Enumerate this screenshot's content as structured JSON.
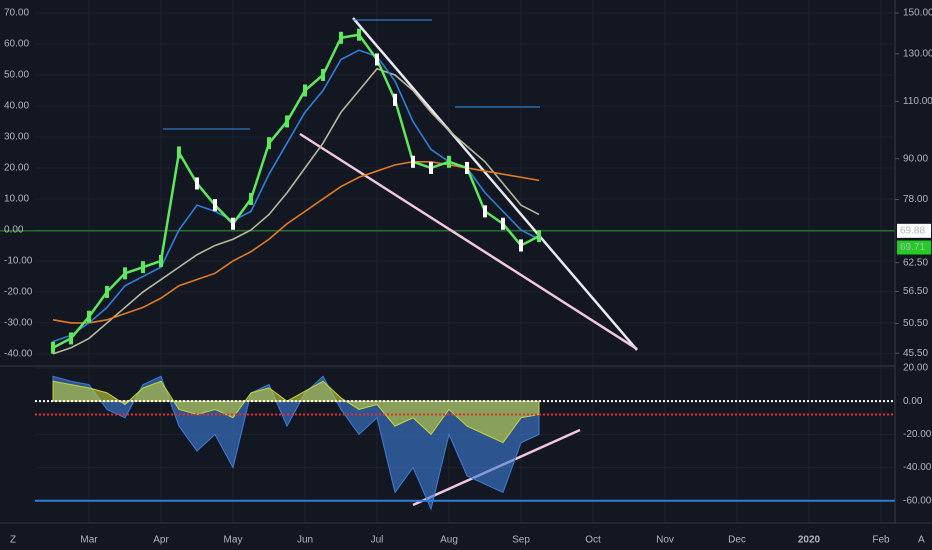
{
  "chart_data": [
    {
      "type": "line",
      "categories": [
        null,
        null,
        "Mar",
        null,
        null,
        null,
        "Apr",
        null,
        null,
        null,
        "May",
        null,
        null,
        null,
        "Jun",
        null,
        null,
        null,
        "Jul",
        null,
        null,
        null,
        "Aug",
        null,
        null,
        null,
        "Sep",
        null,
        null,
        null,
        "Oct",
        null,
        null,
        null,
        "Nov",
        null,
        null,
        null,
        "Dec",
        null,
        null,
        null,
        "2020",
        null,
        null,
        null,
        "Feb"
      ],
      "series": [
        {
          "color": "#b8b89a",
          "values": [
            -40,
            -38,
            -35,
            -30,
            -25,
            -20,
            -16,
            -12,
            -8,
            -5,
            -3,
            0,
            5,
            12,
            20,
            28,
            38,
            45,
            52,
            50,
            45,
            38,
            32,
            27,
            22,
            15,
            8,
            5,
            null,
            null,
            null,
            null,
            null,
            null,
            null,
            null,
            null,
            null,
            null,
            null,
            null,
            null,
            null,
            null,
            null,
            null,
            null
          ]
        },
        {
          "color": "#e07b22",
          "values": [
            -29,
            -30,
            -30,
            -29,
            -27,
            -25,
            -22,
            -18,
            -16,
            -14,
            -10,
            -7,
            -3,
            2,
            6,
            10,
            14,
            17,
            19,
            21,
            22,
            22,
            21,
            20,
            19,
            18,
            17,
            16,
            null,
            null,
            null,
            null,
            null,
            null,
            null,
            null,
            null,
            null,
            null,
            null,
            null,
            null,
            null,
            null,
            null,
            null,
            null
          ]
        },
        {
          "color": "#2f7fd8",
          "values": [
            -36,
            -34,
            -30,
            -25,
            -18,
            -15,
            -12,
            0,
            8,
            6,
            3,
            6,
            18,
            28,
            38,
            45,
            55,
            58,
            56,
            48,
            35,
            26,
            22,
            20,
            12,
            6,
            0,
            -3,
            null,
            null,
            null,
            null,
            null,
            null,
            null,
            null,
            null,
            null,
            null,
            null,
            null,
            null,
            null,
            null,
            null,
            null,
            null
          ]
        },
        {
          "color": "#5de85d",
          "values": [
            -38,
            -35,
            -28,
            -20,
            -14,
            -12,
            -10,
            25,
            15,
            8,
            2,
            10,
            28,
            35,
            45,
            50,
            62,
            63,
            55,
            42,
            22,
            20,
            22,
            20,
            6,
            2,
            -5,
            -2,
            null,
            null,
            null,
            null,
            null,
            null,
            null,
            null,
            null,
            null,
            null,
            null,
            null,
            null,
            null,
            null,
            null,
            null,
            null
          ]
        }
      ],
      "ylim": [
        -43.9,
        74.2
      ],
      "yticks": [
        {
          "value": 70,
          "label": "70.00"
        },
        {
          "value": 60,
          "label": "60.00"
        },
        {
          "value": 50,
          "label": "50.00"
        },
        {
          "value": 40,
          "label": "40.00"
        },
        {
          "value": 30,
          "label": "30.00"
        },
        {
          "value": 20,
          "label": "20.00"
        },
        {
          "value": 10,
          "label": "10.00"
        },
        {
          "value": 0,
          "label": "0.00"
        },
        {
          "value": -10,
          "label": "-10.00"
        },
        {
          "value": -20,
          "label": "-20.00"
        },
        {
          "value": -30,
          "label": "-30.00"
        },
        {
          "value": -40,
          "label": "-40.00"
        }
      ],
      "y2lim": [
        43.5,
        157
      ],
      "y2_log": true,
      "y2ticks": [
        {
          "value": 150,
          "label": "150.00"
        },
        {
          "value": 130,
          "label": "130.00"
        },
        {
          "value": 110,
          "label": "110.00"
        },
        {
          "value": 90,
          "label": "90.00"
        },
        {
          "value": 78,
          "label": "78.00"
        },
        {
          "value": 62.5,
          "label": "62.50"
        },
        {
          "value": 56.5,
          "label": "56.50"
        },
        {
          "value": 50.5,
          "label": "50.50"
        },
        {
          "value": 45.5,
          "label": "45.50"
        }
      ],
      "price_labels": [
        {
          "value": 69.88,
          "label": "69.88",
          "color": "#ffffff"
        },
        {
          "value": 69.71,
          "label": "69.71",
          "color": "#22cc22"
        }
      ],
      "grid": true
    },
    {
      "type": "area",
      "series": [
        {
          "color": "#3d7dd8",
          "values": [
            15,
            12,
            10,
            -5,
            -10,
            10,
            15,
            -15,
            -30,
            -20,
            -40,
            5,
            10,
            -15,
            5,
            15,
            -5,
            -20,
            -10,
            -55,
            -40,
            -65,
            -20,
            -45,
            -50,
            -55,
            -25,
            -20,
            null,
            null,
            null,
            null,
            null,
            null,
            null,
            null,
            null,
            null,
            null,
            null,
            null,
            null,
            null,
            null,
            null,
            null,
            null
          ]
        },
        {
          "color": "#c8d43a",
          "values": [
            12,
            10,
            8,
            5,
            -2,
            8,
            12,
            -5,
            -8,
            -5,
            -10,
            5,
            8,
            0,
            6,
            12,
            2,
            -5,
            -2,
            -15,
            -10,
            -20,
            -5,
            -15,
            -20,
            -25,
            -10,
            -8,
            null,
            null,
            null,
            null,
            null,
            null,
            null,
            null,
            null,
            null,
            null,
            null,
            null,
            null,
            null,
            null,
            null,
            null,
            null
          ]
        }
      ],
      "hlines": [
        {
          "value": 0,
          "color": "#ffffff"
        },
        {
          "value": -8,
          "color": "#e03030"
        },
        {
          "value": -60,
          "color": "#2f7fd8"
        }
      ],
      "ylim": [
        -73.4,
        21.2
      ],
      "yticks": [
        {
          "value": 20,
          "label": "20.00"
        },
        {
          "value": 0,
          "label": "0.00"
        },
        {
          "value": -20,
          "label": "-20.00"
        },
        {
          "value": -40,
          "label": "-40.00"
        },
        {
          "value": -60,
          "label": "-60.00"
        }
      ],
      "grid": true
    }
  ],
  "corner": {
    "left": "Z",
    "right": "A"
  }
}
